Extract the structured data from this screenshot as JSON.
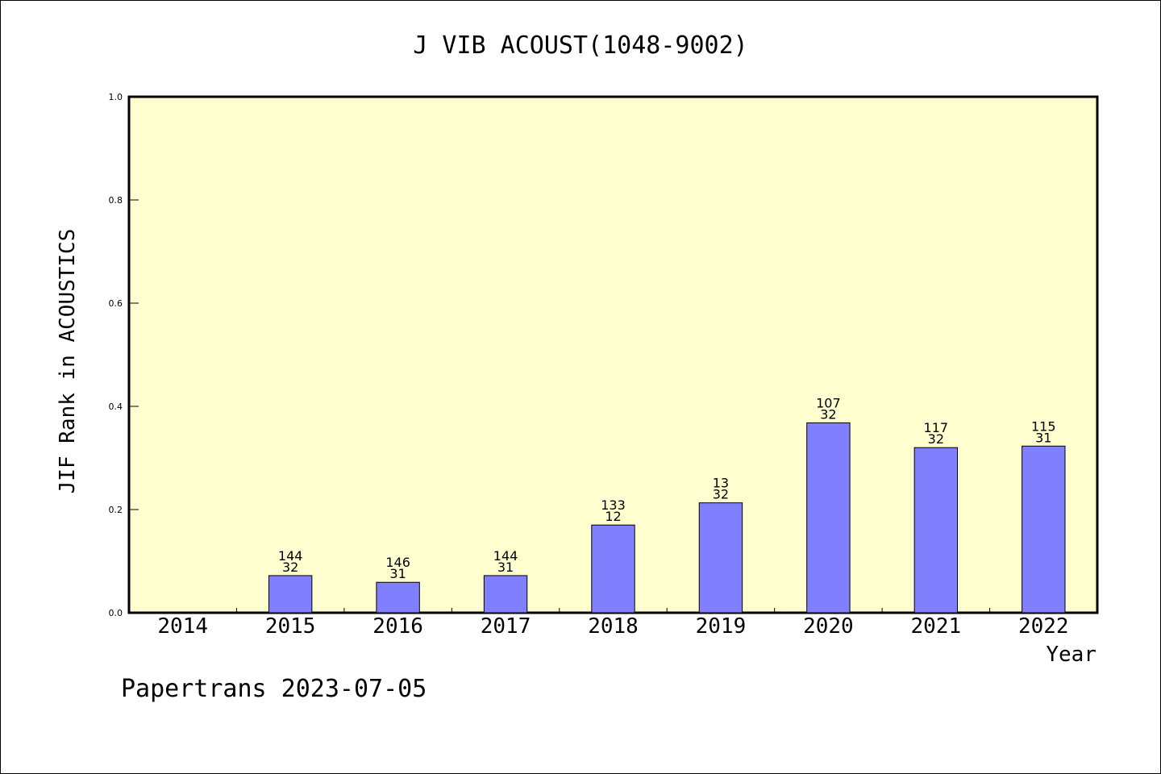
{
  "chart_data": {
    "type": "bar",
    "title": "J VIB ACOUST(1048-9002)",
    "xlabel": "Year",
    "ylabel": "JIF Rank in ACOUSTICS",
    "categories": [
      "2014",
      "2015",
      "2016",
      "2017",
      "2018",
      "2019",
      "2020",
      "2021",
      "2022"
    ],
    "values": [
      null,
      0.072,
      0.059,
      0.072,
      0.17,
      0.213,
      0.368,
      0.32,
      0.323
    ],
    "bar_labels": [
      null,
      [
        "144",
        "32"
      ],
      [
        "146",
        "31"
      ],
      [
        "144",
        "31"
      ],
      [
        "133",
        "12"
      ],
      [
        "13",
        "32"
      ],
      [
        "107",
        "32"
      ],
      [
        "117",
        "32"
      ],
      [
        "115",
        "31"
      ]
    ],
    "ylim": [
      0,
      1.0
    ],
    "yticks": [
      "0.0",
      "0.2",
      "0.4",
      "0.6",
      "0.8",
      "1.0"
    ],
    "grid": false,
    "legend": "none",
    "colors": {
      "plot_background": "#ffffd0",
      "bar_fill": "#8080ff",
      "bar_stroke": "#000000"
    }
  },
  "footer": {
    "text": "Papertrans 2023-07-05"
  }
}
